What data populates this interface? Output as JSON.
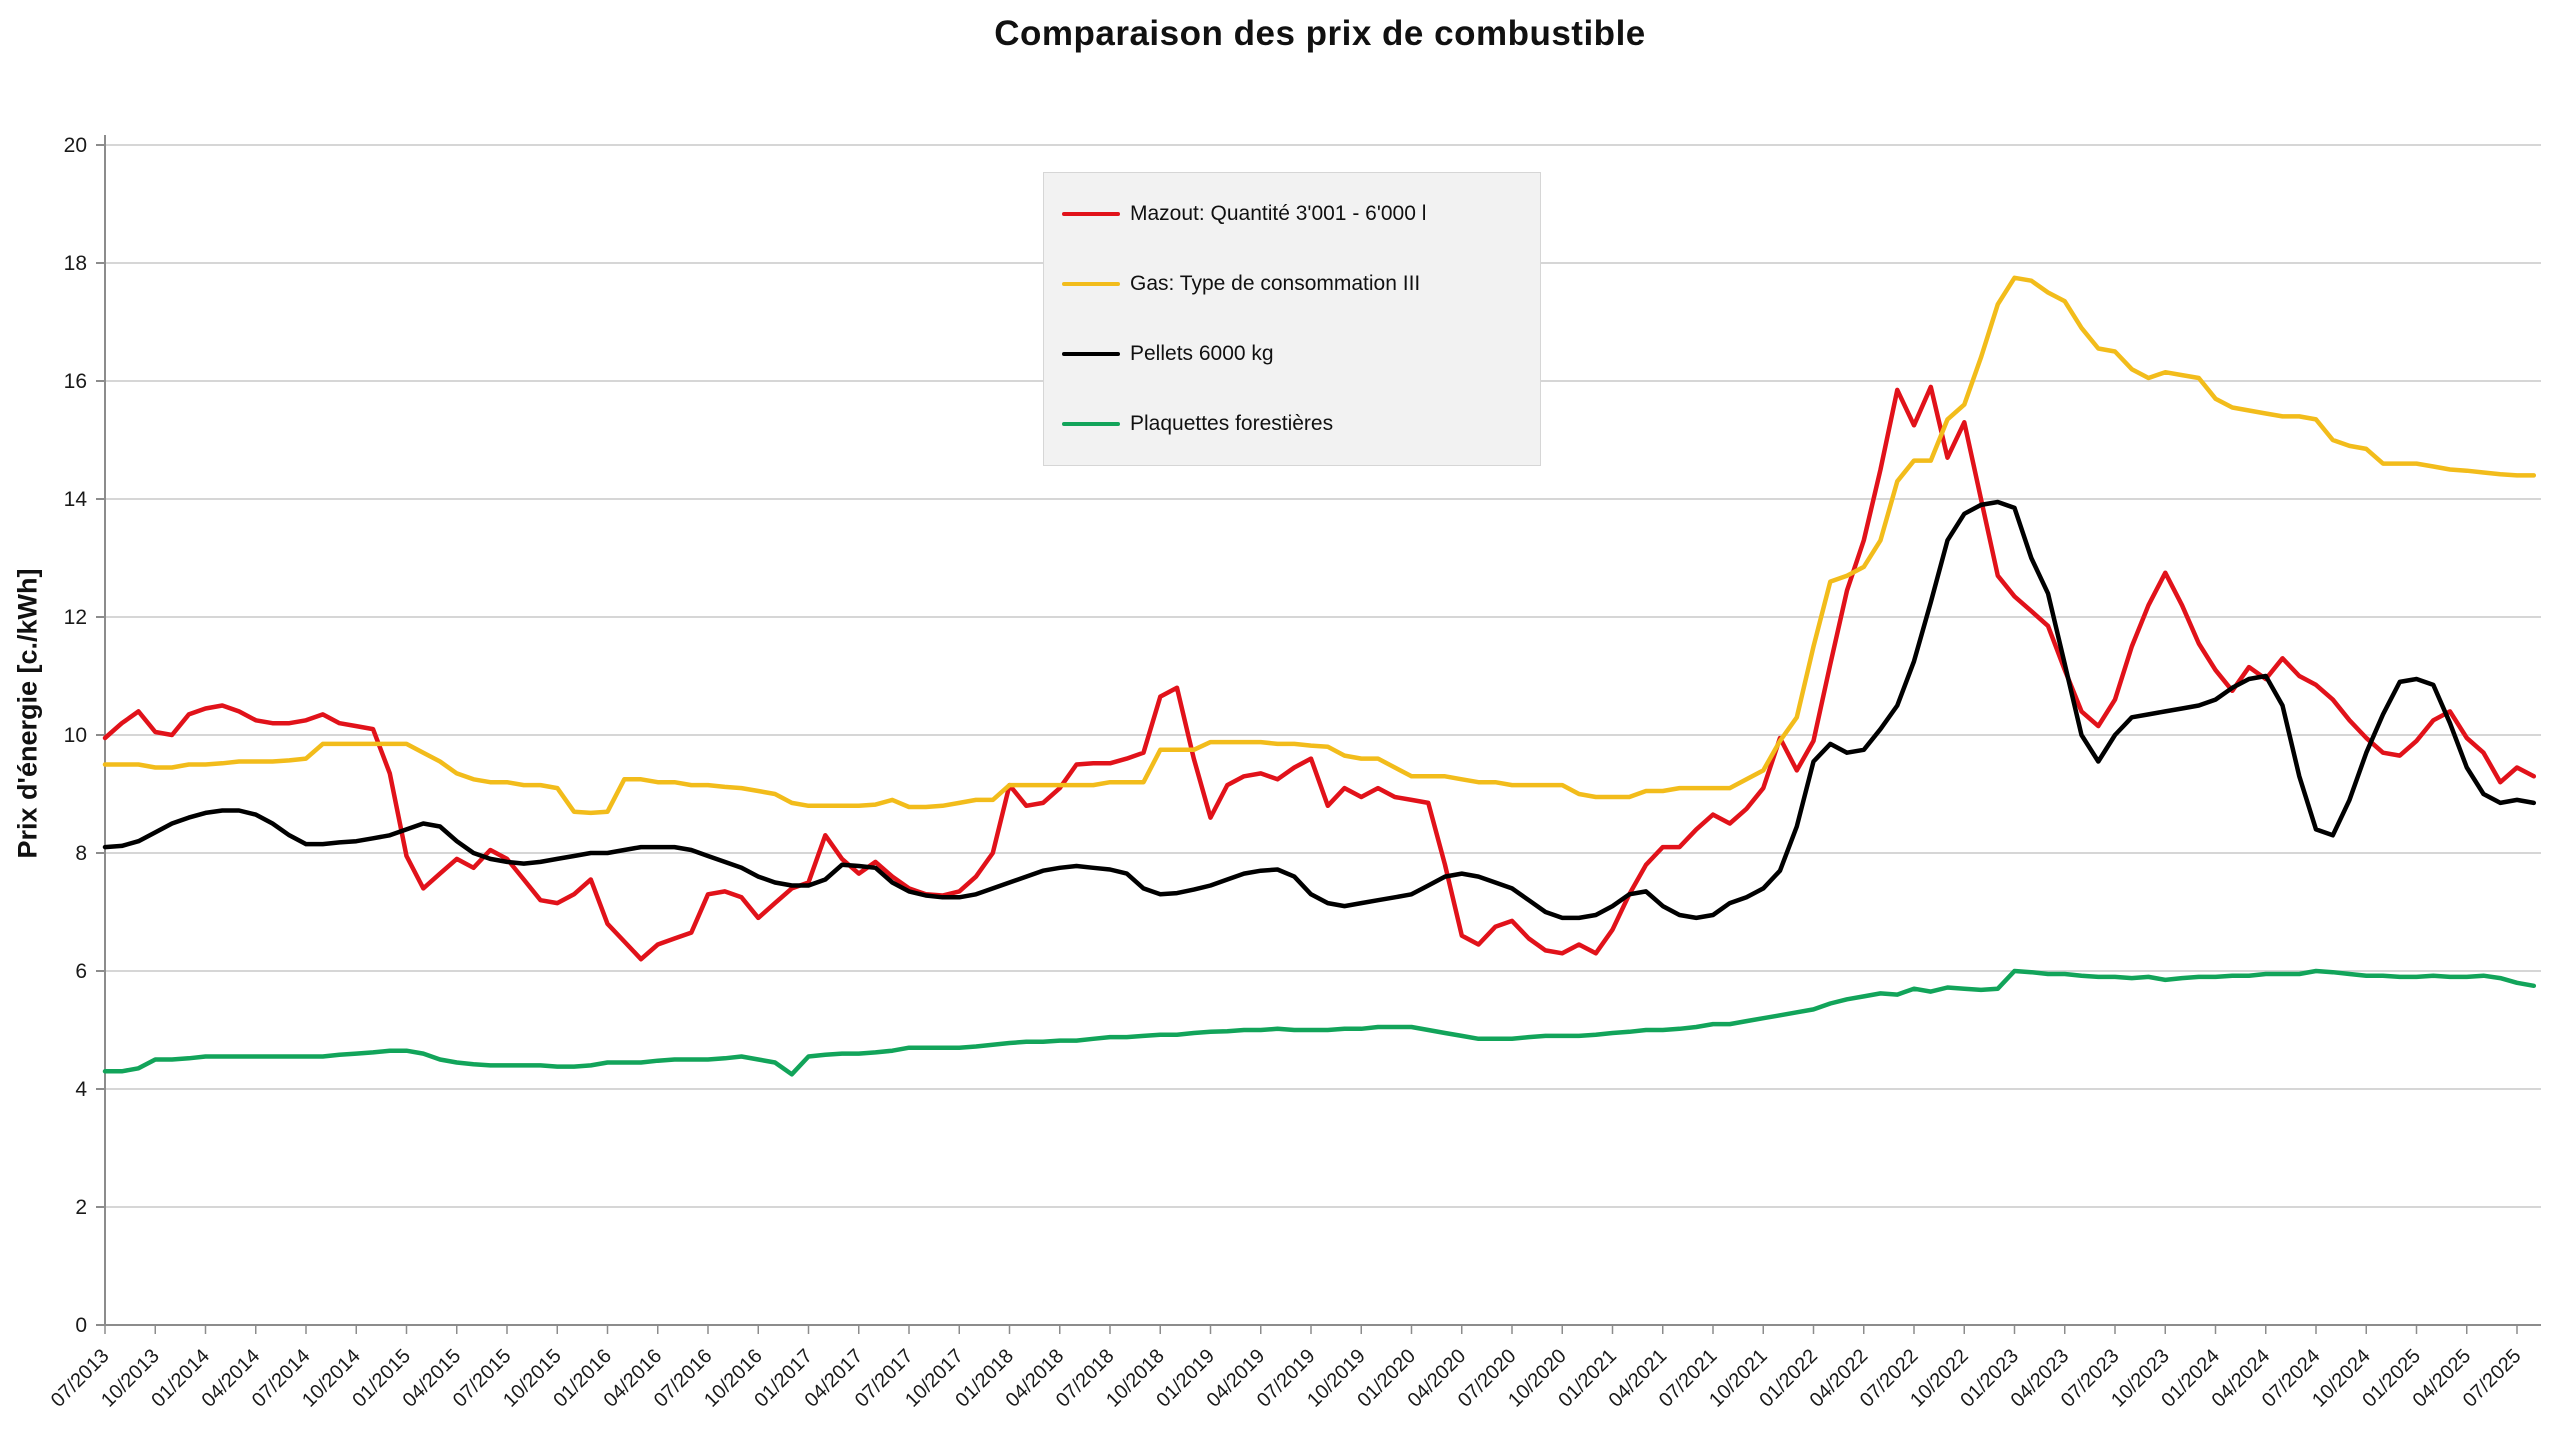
{
  "chart_data": {
    "type": "line",
    "title": "Comparaison des prix de combustible",
    "xlabel": "",
    "ylabel": "Prix d'énergie [c./kWh]",
    "ylim": [
      0,
      20
    ],
    "y_ticks": [
      0,
      2,
      4,
      6,
      8,
      10,
      12,
      14,
      16,
      18,
      20
    ],
    "grid": "horizontal-only",
    "legend_position": "top-center-inside",
    "x_start_month": "07/2013",
    "x_months_per_point": 1,
    "x_tick_every_points": 3,
    "x_tick_labels": [
      "07/2013",
      "10/2013",
      "01/2014",
      "04/2014",
      "07/2014",
      "10/2014",
      "01/2015",
      "04/2015",
      "07/2015",
      "10/2015",
      "01/2016",
      "04/2016",
      "07/2016",
      "10/2016",
      "01/2017",
      "04/2017",
      "07/2017",
      "10/2017",
      "01/2018",
      "04/2018",
      "07/2018",
      "10/2018",
      "01/2019",
      "04/2019",
      "07/2019",
      "10/2019",
      "01/2020",
      "04/2020",
      "07/2020",
      "10/2020",
      "01/2021",
      "04/2021",
      "07/2021",
      "10/2021",
      "01/2022",
      "04/2022",
      "07/2022",
      "10/2022",
      "01/2023",
      "04/2023",
      "07/2023",
      "10/2023",
      "01/2024",
      "04/2024",
      "07/2024",
      "10/2024",
      "01/2025",
      "04/2025",
      "07/2025"
    ],
    "colors": {
      "grid": "#c9c9c9",
      "axis": "#8c8c8c",
      "tick_label": "#1a1a1a",
      "legend_bg": "#f2f2f2"
    },
    "series": [
      {
        "name": "Mazout: Quantité 3'001 - 6'000 l",
        "color": "#e1121a",
        "values": [
          9.95,
          10.2,
          10.4,
          10.05,
          10.0,
          10.35,
          10.45,
          10.5,
          10.4,
          10.25,
          10.2,
          10.2,
          10.25,
          10.35,
          10.2,
          10.15,
          10.1,
          9.35,
          7.95,
          7.4,
          7.65,
          7.9,
          7.75,
          8.05,
          7.9,
          7.55,
          7.2,
          7.15,
          7.3,
          7.55,
          6.8,
          6.5,
          6.2,
          6.45,
          6.55,
          6.65,
          7.3,
          7.35,
          7.25,
          6.9,
          7.15,
          7.4,
          7.5,
          8.3,
          7.9,
          7.65,
          7.85,
          7.6,
          7.4,
          7.3,
          7.28,
          7.35,
          7.6,
          8.0,
          9.15,
          8.8,
          8.85,
          9.1,
          9.5,
          9.52,
          9.52,
          9.6,
          9.7,
          10.65,
          10.8,
          9.6,
          8.6,
          9.15,
          9.3,
          9.35,
          9.25,
          9.45,
          9.6,
          8.8,
          9.1,
          8.95,
          9.1,
          8.95,
          8.9,
          8.85,
          7.8,
          6.6,
          6.45,
          6.75,
          6.85,
          6.55,
          6.35,
          6.3,
          6.45,
          6.3,
          6.7,
          7.3,
          7.8,
          8.1,
          8.1,
          8.4,
          8.65,
          8.5,
          8.75,
          9.1,
          9.95,
          9.4,
          9.9,
          11.2,
          12.45,
          13.3,
          14.5,
          15.85,
          15.25,
          15.9,
          14.7,
          15.3,
          14.0,
          12.7,
          12.35,
          12.1,
          11.85,
          11.1,
          10.4,
          10.15,
          10.6,
          11.5,
          12.2,
          12.75,
          12.2,
          11.55,
          11.1,
          10.75,
          11.15,
          10.95,
          11.3,
          11.0,
          10.85,
          10.6,
          10.25,
          9.95,
          9.7,
          9.65,
          9.9,
          10.25,
          10.4,
          9.95,
          9.7,
          9.2,
          9.45,
          9.3
        ]
      },
      {
        "name": "Gas: Type de consommation III",
        "color": "#f2bc1b",
        "values": [
          9.5,
          9.5,
          9.5,
          9.45,
          9.45,
          9.5,
          9.5,
          9.52,
          9.55,
          9.55,
          9.55,
          9.57,
          9.6,
          9.85,
          9.85,
          9.85,
          9.85,
          9.85,
          9.85,
          9.7,
          9.55,
          9.35,
          9.25,
          9.2,
          9.2,
          9.15,
          9.15,
          9.1,
          8.7,
          8.68,
          8.7,
          9.25,
          9.25,
          9.2,
          9.2,
          9.15,
          9.15,
          9.12,
          9.1,
          9.05,
          9.0,
          8.85,
          8.8,
          8.8,
          8.8,
          8.8,
          8.82,
          8.9,
          8.78,
          8.78,
          8.8,
          8.85,
          8.9,
          8.9,
          9.15,
          9.15,
          9.15,
          9.15,
          9.15,
          9.15,
          9.2,
          9.2,
          9.2,
          9.75,
          9.75,
          9.75,
          9.88,
          9.88,
          9.88,
          9.88,
          9.85,
          9.85,
          9.82,
          9.8,
          9.65,
          9.6,
          9.6,
          9.45,
          9.3,
          9.3,
          9.3,
          9.25,
          9.2,
          9.2,
          9.15,
          9.15,
          9.15,
          9.15,
          9.0,
          8.95,
          8.95,
          8.95,
          9.05,
          9.05,
          9.1,
          9.1,
          9.1,
          9.1,
          9.25,
          9.4,
          9.9,
          10.3,
          11.5,
          12.6,
          12.7,
          12.85,
          13.3,
          14.3,
          14.65,
          14.65,
          15.35,
          15.6,
          16.4,
          17.3,
          17.75,
          17.7,
          17.5,
          17.35,
          16.9,
          16.55,
          16.5,
          16.2,
          16.05,
          16.15,
          16.1,
          16.05,
          15.7,
          15.55,
          15.5,
          15.45,
          15.4,
          15.4,
          15.35,
          15.0,
          14.9,
          14.85,
          14.6,
          14.6,
          14.6,
          14.55,
          14.5,
          14.48,
          14.45,
          14.42,
          14.4,
          14.4
        ]
      },
      {
        "name": "Pellets 6000 kg",
        "color": "#000000",
        "values": [
          8.1,
          8.12,
          8.2,
          8.35,
          8.5,
          8.6,
          8.68,
          8.72,
          8.72,
          8.65,
          8.5,
          8.3,
          8.15,
          8.15,
          8.18,
          8.2,
          8.25,
          8.3,
          8.4,
          8.5,
          8.45,
          8.2,
          8.0,
          7.9,
          7.85,
          7.82,
          7.85,
          7.9,
          7.95,
          8.0,
          8.0,
          8.05,
          8.1,
          8.1,
          8.1,
          8.05,
          7.95,
          7.85,
          7.75,
          7.6,
          7.5,
          7.45,
          7.45,
          7.55,
          7.8,
          7.78,
          7.75,
          7.5,
          7.35,
          7.28,
          7.25,
          7.25,
          7.3,
          7.4,
          7.5,
          7.6,
          7.7,
          7.75,
          7.78,
          7.75,
          7.72,
          7.65,
          7.4,
          7.3,
          7.32,
          7.38,
          7.45,
          7.55,
          7.65,
          7.7,
          7.72,
          7.6,
          7.3,
          7.15,
          7.1,
          7.15,
          7.2,
          7.25,
          7.3,
          7.45,
          7.6,
          7.65,
          7.6,
          7.5,
          7.4,
          7.2,
          7.0,
          6.9,
          6.9,
          6.95,
          7.1,
          7.3,
          7.35,
          7.1,
          6.95,
          6.9,
          6.95,
          7.15,
          7.25,
          7.4,
          7.7,
          8.45,
          9.55,
          9.85,
          9.7,
          9.75,
          10.1,
          10.5,
          11.25,
          12.25,
          13.3,
          13.75,
          13.9,
          13.95,
          13.85,
          13.0,
          12.4,
          11.2,
          10.0,
          9.55,
          10.0,
          10.3,
          10.35,
          10.4,
          10.45,
          10.5,
          10.6,
          10.8,
          10.95,
          11.0,
          10.5,
          9.3,
          8.4,
          8.3,
          8.9,
          9.7,
          10.35,
          10.9,
          10.95,
          10.85,
          10.2,
          9.45,
          9.0,
          8.85,
          8.9,
          8.85
        ]
      },
      {
        "name": "Plaquettes forestières",
        "color": "#12a45a",
        "values": [
          4.3,
          4.3,
          4.35,
          4.5,
          4.5,
          4.52,
          4.55,
          4.55,
          4.55,
          4.55,
          4.55,
          4.55,
          4.55,
          4.55,
          4.58,
          4.6,
          4.62,
          4.65,
          4.65,
          4.6,
          4.5,
          4.45,
          4.42,
          4.4,
          4.4,
          4.4,
          4.4,
          4.38,
          4.38,
          4.4,
          4.45,
          4.45,
          4.45,
          4.48,
          4.5,
          4.5,
          4.5,
          4.52,
          4.55,
          4.5,
          4.45,
          4.25,
          4.55,
          4.58,
          4.6,
          4.6,
          4.62,
          4.65,
          4.7,
          4.7,
          4.7,
          4.7,
          4.72,
          4.75,
          4.78,
          4.8,
          4.8,
          4.82,
          4.82,
          4.85,
          4.88,
          4.88,
          4.9,
          4.92,
          4.92,
          4.95,
          4.97,
          4.98,
          5.0,
          5.0,
          5.02,
          5.0,
          5.0,
          5.0,
          5.02,
          5.02,
          5.05,
          5.05,
          5.05,
          5.0,
          4.95,
          4.9,
          4.85,
          4.85,
          4.85,
          4.88,
          4.9,
          4.9,
          4.9,
          4.92,
          4.95,
          4.97,
          5.0,
          5.0,
          5.02,
          5.05,
          5.1,
          5.1,
          5.15,
          5.2,
          5.25,
          5.3,
          5.35,
          5.45,
          5.52,
          5.57,
          5.62,
          5.6,
          5.7,
          5.65,
          5.72,
          5.7,
          5.68,
          5.7,
          6.0,
          5.98,
          5.95,
          5.95,
          5.92,
          5.9,
          5.9,
          5.88,
          5.9,
          5.85,
          5.88,
          5.9,
          5.9,
          5.92,
          5.92,
          5.95,
          5.95,
          5.95,
          6.0,
          5.98,
          5.95,
          5.92,
          5.92,
          5.9,
          5.9,
          5.92,
          5.9,
          5.9,
          5.92,
          5.88,
          5.8,
          5.75
        ]
      }
    ]
  }
}
